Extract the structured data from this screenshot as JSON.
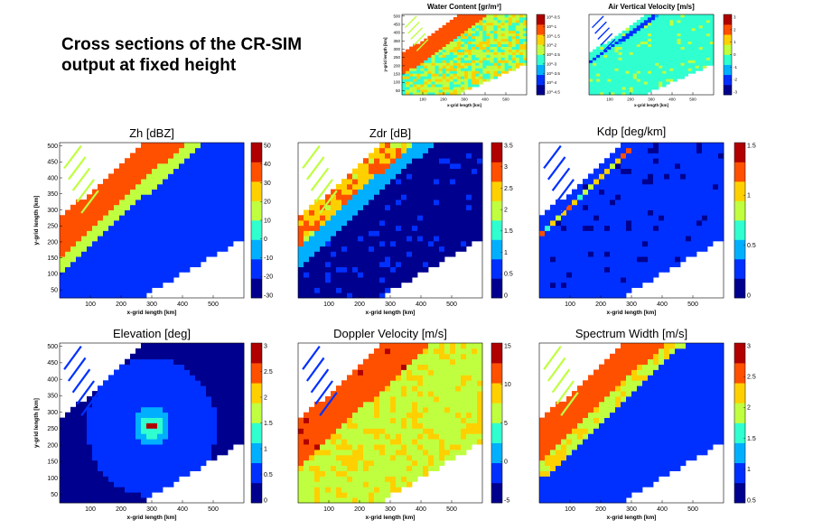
{
  "slide": {
    "headline_line1": "Cross sections of the CR-SIM",
    "headline_line2": "output at fixed height"
  },
  "colormap": [
    "#00008f",
    "#0030ff",
    "#00b0ff",
    "#30ffd0",
    "#c0ff40",
    "#ffd000",
    "#ff5000",
    "#b00000"
  ],
  "chart_data": [
    {
      "type": "heatmap",
      "title": "Water Content [gr/m³]",
      "xlabel": "x-grid length [km]",
      "ylabel": "y-grid length [km]",
      "xticks": [
        100,
        200,
        300,
        400,
        500
      ],
      "yticks": [
        50,
        100,
        150,
        200,
        250,
        300,
        350,
        400,
        450,
        500
      ],
      "xlim": [
        0,
        600
      ],
      "ylim": [
        25,
        510
      ],
      "colorbar": {
        "ticks": [
          "10^-0.5",
          "10^-1",
          "10^-1.5",
          "10^-2",
          "10^-2.5",
          "10^-3",
          "10^-3.5",
          "10^-4",
          "10^-4.5"
        ],
        "scale": "log",
        "range": [
          -4.6,
          -0.3
        ]
      },
      "small": true,
      "field": "wc"
    },
    {
      "type": "heatmap",
      "title": "Air Vertical Velocity [m/s]",
      "xlabel": "x-grid length [km]",
      "ylabel": "",
      "xticks": [
        100,
        200,
        300,
        400,
        500
      ],
      "yticks": [],
      "xlim": [
        0,
        600
      ],
      "ylim": [
        25,
        510
      ],
      "colorbar": {
        "ticks": [
          "3",
          "2",
          "1",
          "0",
          "-1",
          "-2",
          "-3"
        ],
        "range": [
          -3,
          3
        ]
      },
      "small": true,
      "field": "wvel"
    },
    {
      "type": "heatmap",
      "title": "Zh [dBZ]",
      "xlabel": "x-grid length [km]",
      "ylabel": "y-grid length [km]",
      "xticks": [
        100,
        200,
        300,
        400,
        500
      ],
      "yticks": [
        50,
        100,
        150,
        200,
        250,
        300,
        350,
        400,
        450,
        500
      ],
      "xlim": [
        0,
        600
      ],
      "ylim": [
        25,
        510
      ],
      "colorbar": {
        "ticks": [
          "50",
          "40",
          "30",
          "20",
          "10",
          "0",
          "-10",
          "-20",
          "-30"
        ],
        "range": [
          -30,
          55
        ]
      },
      "field": "zh"
    },
    {
      "type": "heatmap",
      "title": "Zdr [dB]",
      "xlabel": "x-grid length [km]",
      "ylabel": "",
      "xticks": [
        100,
        200,
        300,
        400,
        500
      ],
      "yticks": [],
      "xlim": [
        0,
        600
      ],
      "ylim": [
        25,
        510
      ],
      "colorbar": {
        "ticks": [
          "3.5",
          "3",
          "2.5",
          "2",
          "1.5",
          "1",
          "0.5",
          "0"
        ],
        "range": [
          0,
          3.5
        ]
      },
      "field": "zdr"
    },
    {
      "type": "heatmap",
      "title": "Kdp [deg/km]",
      "xlabel": "x-grid length [km]",
      "ylabel": "",
      "xticks": [
        100,
        200,
        300,
        400,
        500
      ],
      "yticks": [],
      "xlim": [
        0,
        600
      ],
      "ylim": [
        25,
        510
      ],
      "colorbar": {
        "ticks": [
          "1.5",
          "1",
          "0.5",
          "0"
        ],
        "range": [
          0,
          1.5
        ]
      },
      "field": "kdp"
    },
    {
      "type": "heatmap",
      "title": "Elevation [deg]",
      "xlabel": "x-grid length [km]",
      "ylabel": "y-grid length [km]",
      "xticks": [
        100,
        200,
        300,
        400,
        500
      ],
      "yticks": [
        50,
        100,
        150,
        200,
        250,
        300,
        350,
        400,
        450,
        500
      ],
      "xlim": [
        0,
        600
      ],
      "ylim": [
        25,
        510
      ],
      "colorbar": {
        "ticks": [
          "3",
          "2.5",
          "2",
          "1.5",
          "1",
          "0.5",
          "0"
        ],
        "range": [
          0,
          3
        ]
      },
      "field": "elev"
    },
    {
      "type": "heatmap",
      "title": "Doppler Velocity [m/s]",
      "xlabel": "x-grid length [km]",
      "ylabel": "",
      "xticks": [
        100,
        200,
        300,
        400,
        500
      ],
      "yticks": [],
      "xlim": [
        0,
        600
      ],
      "ylim": [
        25,
        510
      ],
      "colorbar": {
        "ticks": [
          "15",
          "10",
          "5",
          "0",
          "-5"
        ],
        "range": [
          -6,
          18
        ]
      },
      "field": "vd"
    },
    {
      "type": "heatmap",
      "title": "Spectrum Width [m/s]",
      "xlabel": "x-grid length [km]",
      "ylabel": "",
      "xticks": [
        100,
        200,
        300,
        400,
        500
      ],
      "yticks": [],
      "xlim": [
        0,
        600
      ],
      "ylim": [
        25,
        510
      ],
      "colorbar": {
        "ticks": [
          "3",
          "2.5",
          "2",
          "1.5",
          "1",
          "0.5"
        ],
        "range": [
          0.3,
          3.3
        ]
      },
      "field": "sw"
    }
  ]
}
